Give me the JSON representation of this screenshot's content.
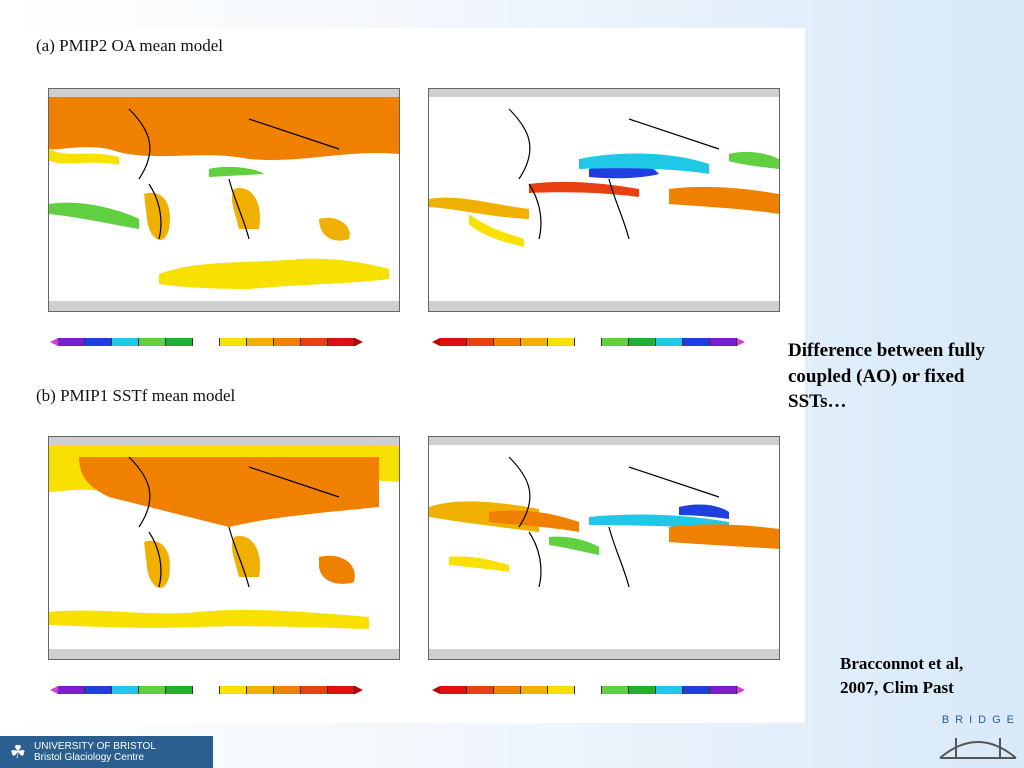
{
  "panels": [
    {
      "title": "(a) PMIP2 OA mean model"
    },
    {
      "title": "(b) PMIP1 SSTf mean model"
    }
  ],
  "side_text": "Difference between fully coupled (AO) or fixed SSTs…",
  "citation": {
    "line1": "Bracconnot et al,",
    "line2": "2007, Clim Past"
  },
  "footer": {
    "line1": "UNIVERSITY OF BRISTOL",
    "line2": "Bristol Glaciology Centre"
  },
  "bridge_logo": "BRIDGE",
  "colors": {
    "warm_scale": [
      "#7a1fd0",
      "#1f3fe0",
      "#20c8e8",
      "#60d040",
      "#20b030",
      "#ffffff",
      "#f8e000",
      "#f0b000",
      "#f08000",
      "#e84010",
      "#e01010"
    ],
    "cool_scale": [
      "#e01010",
      "#e84010",
      "#f08000",
      "#f0b000",
      "#f8e000",
      "#ffffff",
      "#60d040",
      "#20b030",
      "#20c8e8",
      "#1f3fe0",
      "#7a1fd0"
    ]
  }
}
